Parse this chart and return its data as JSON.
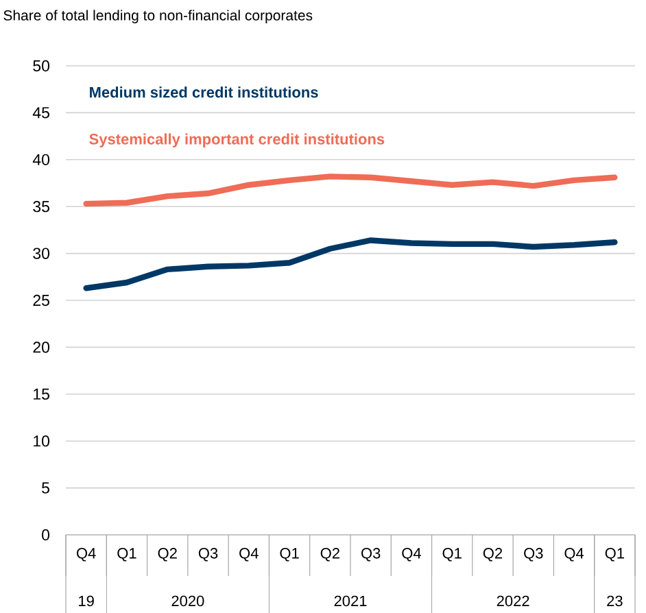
{
  "chart_data": {
    "type": "line",
    "title": "Share of total lending to non-financial corporates",
    "categories": [
      "Q4",
      "Q1",
      "Q2",
      "Q3",
      "Q4",
      "Q1",
      "Q2",
      "Q3",
      "Q4",
      "Q1",
      "Q2",
      "Q3",
      "Q4",
      "Q1"
    ],
    "annotations": [
      "19",
      "2020",
      "2021",
      "2022",
      "23"
    ],
    "ylim": [
      0,
      50
    ],
    "yticks": [
      0,
      5,
      10,
      15,
      20,
      25,
      30,
      35,
      40,
      45,
      50
    ],
    "grid": "y",
    "marker": "none",
    "line_style": "solid",
    "series": [
      {
        "name": "Medium sized credit institutions",
        "color": "#003865",
        "values": [
          26.3,
          26.9,
          28.3,
          28.6,
          28.7,
          29.0,
          30.5,
          31.4,
          31.1,
          31.0,
          31.0,
          30.7,
          30.9,
          31.2
        ]
      },
      {
        "name": "Systemically important credit institutions",
        "color": "#ef6c56",
        "values": [
          35.3,
          35.4,
          36.1,
          36.4,
          37.3,
          37.8,
          38.2,
          38.1,
          37.7,
          37.3,
          37.6,
          37.2,
          37.8,
          38.1
        ]
      }
    ]
  }
}
